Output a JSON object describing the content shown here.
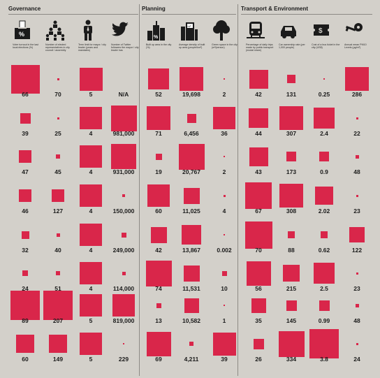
{
  "sections": [
    {
      "title": "Governance",
      "columns": [
        {
          "label": "Voter turnout in the last local elections (%)",
          "icon": "ballot-box-icon"
        },
        {
          "label": "Number of elected representatives in city council / assembly",
          "icon": "council-people-icon"
        },
        {
          "label": "Term limit for mayor / city leader (years and mandates)",
          "icon": "mayor-person-icon"
        },
        {
          "label": "Number of Twitter followers the mayor / city leader has",
          "icon": "twitter-bird-icon"
        }
      ]
    },
    {
      "title": "Planning",
      "columns": [
        {
          "label": "Built up area in the city (%)",
          "icon": "built-area-icon"
        },
        {
          "label": "Average density of built up area (people/km²)",
          "icon": "density-building-icon"
        },
        {
          "label": "Green space in the city (m²/person)",
          "icon": "tree-icon"
        }
      ]
    },
    {
      "title": "Transport & Environment",
      "columns": [
        {
          "label": "Percentage of daily trips made by public transport (modal share)",
          "icon": "train-icon"
        },
        {
          "label": "Car ownership rate (per 1,000 people)",
          "icon": "car-icon"
        },
        {
          "label": "Cost of a bus ticket in the city (US$)",
          "icon": "ticket-icon"
        },
        {
          "label": "Annual mean PM10 Levels (μg/m³)",
          "icon": "pollution-key-icon"
        }
      ]
    }
  ],
  "rows": [
    {
      "values": [
        "66",
        "70",
        "5",
        "N/A",
        "52",
        "19,698",
        "2",
        "42",
        "131",
        "0.25",
        "286"
      ],
      "sizes": [
        0.97,
        0.08,
        0.79,
        0,
        0.72,
        0.82,
        0.04,
        0.64,
        0.28,
        0.03,
        0.8
      ]
    },
    {
      "values": [
        "39",
        "25",
        "4",
        "981,000",
        "71",
        "6,456",
        "36",
        "44",
        "307",
        "2.4",
        "22"
      ],
      "sizes": [
        0.35,
        0.08,
        0.75,
        0.88,
        0.82,
        0.3,
        0.76,
        0.66,
        0.8,
        0.72,
        0.06
      ]
    },
    {
      "values": [
        "47",
        "45",
        "4",
        "931,000",
        "19",
        "20,767",
        "2",
        "43",
        "173",
        "0.9",
        "48"
      ],
      "sizes": [
        0.43,
        0.15,
        0.75,
        0.85,
        0.22,
        0.88,
        0.04,
        0.64,
        0.33,
        0.34,
        0.12
      ]
    },
    {
      "values": [
        "46",
        "127",
        "4",
        "150,000",
        "60",
        "11,025",
        "4",
        "67",
        "308",
        "2.02",
        "23"
      ],
      "sizes": [
        0.43,
        0.42,
        0.75,
        0.1,
        0.77,
        0.55,
        0.08,
        0.9,
        0.8,
        0.62,
        0.06
      ]
    },
    {
      "values": [
        "32",
        "40",
        "4",
        "249,000",
        "42",
        "13,867",
        "0.002",
        "70",
        "88",
        "0.62",
        "122"
      ],
      "sizes": [
        0.27,
        0.13,
        0.75,
        0.17,
        0.55,
        0.66,
        0.02,
        0.92,
        0.24,
        0.24,
        0.52
      ]
    },
    {
      "values": [
        "24",
        "51",
        "4",
        "114,000",
        "74",
        "11,531",
        "10",
        "56",
        "215",
        "2.5",
        "23"
      ],
      "sizes": [
        0.2,
        0.15,
        0.75,
        0.11,
        0.88,
        0.55,
        0.16,
        0.84,
        0.56,
        0.72,
        0.06
      ]
    },
    {
      "values": [
        "89",
        "207",
        "5",
        "819,000",
        "13",
        "10,582",
        "1",
        "35",
        "145",
        "0.99",
        "48"
      ],
      "sizes": [
        1.0,
        1.0,
        0.75,
        0.76,
        0.17,
        0.5,
        0.03,
        0.5,
        0.35,
        0.36,
        0.12
      ]
    },
    {
      "values": [
        "60",
        "149",
        "5",
        "229",
        "69",
        "4,211",
        "39",
        "26",
        "334",
        "3.8",
        "24"
      ],
      "sizes": [
        0.62,
        0.62,
        0.75,
        0.04,
        0.84,
        0.14,
        0.79,
        0.35,
        0.88,
        1.0,
        0.07
      ]
    }
  ]
}
